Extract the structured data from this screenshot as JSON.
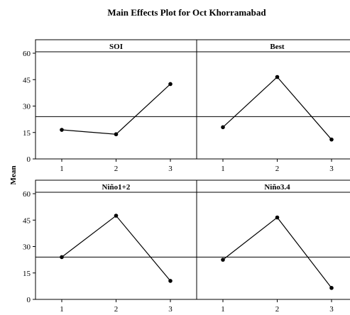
{
  "chart_data": {
    "type": "line",
    "title": "Main Effects Plot for Oct Khorramabad",
    "ylabel": "Mean",
    "ylim": [
      0,
      60
    ],
    "yticks": [
      0,
      15,
      30,
      45,
      60
    ],
    "xticks": [
      "1",
      "2",
      "3"
    ],
    "reference_line": 24,
    "panels": [
      {
        "name": "SOI",
        "x": [
          1,
          2,
          3
        ],
        "values": [
          16.5,
          14,
          42.5
        ]
      },
      {
        "name": "Best",
        "x": [
          1,
          2,
          3
        ],
        "values": [
          18,
          46.5,
          11
        ]
      },
      {
        "name": "Niño1+2",
        "x": [
          1,
          2,
          3
        ],
        "values": [
          24,
          47.5,
          10.5
        ]
      },
      {
        "name": "Niño3.4",
        "x": [
          1,
          2,
          3
        ],
        "values": [
          22.5,
          46.5,
          6.5
        ]
      }
    ]
  }
}
